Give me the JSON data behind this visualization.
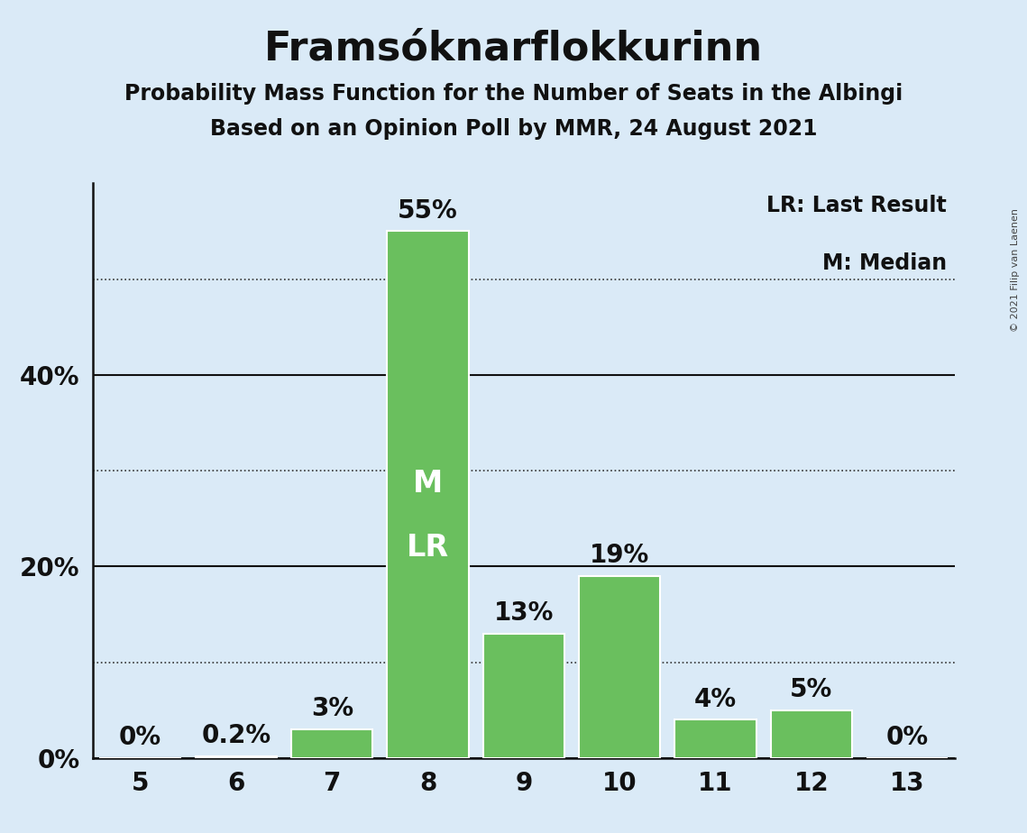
{
  "title": "Framsóknarflokkurinn",
  "subtitle1": "Probability Mass Function for the Number of Seats in the Albingi",
  "subtitle2": "Based on an Opinion Poll by MMR, 24 August 2021",
  "copyright": "© 2021 Filip van Laenen",
  "categories": [
    5,
    6,
    7,
    8,
    9,
    10,
    11,
    12,
    13
  ],
  "values": [
    0.0,
    0.2,
    3.0,
    55.0,
    13.0,
    19.0,
    4.0,
    5.0,
    0.0
  ],
  "labels": [
    "0%",
    "0.2%",
    "3%",
    "55%",
    "13%",
    "19%",
    "4%",
    "5%",
    "0%"
  ],
  "bar_color": "#6abf5e",
  "median_seat": 8,
  "last_result_seat": 8,
  "background_color": "#daeaf7",
  "bar_edge_color": "#ffffff",
  "yticks": [
    0,
    20,
    40
  ],
  "ytick_labels": [
    "0%",
    "20%",
    "40%"
  ],
  "dotted_lines": [
    10,
    30,
    50
  ],
  "solid_lines": [
    0,
    20,
    40
  ],
  "ylim": [
    0,
    60
  ],
  "xlim": [
    4.5,
    13.5
  ],
  "legend_lr": "LR: Last Result",
  "legend_m": "M: Median",
  "title_fontsize": 32,
  "subtitle_fontsize": 17,
  "tick_fontsize": 20,
  "bar_label_fontsize": 20,
  "bar_label_inside_fontsize": 24,
  "legend_fontsize": 17,
  "copyright_fontsize": 8
}
